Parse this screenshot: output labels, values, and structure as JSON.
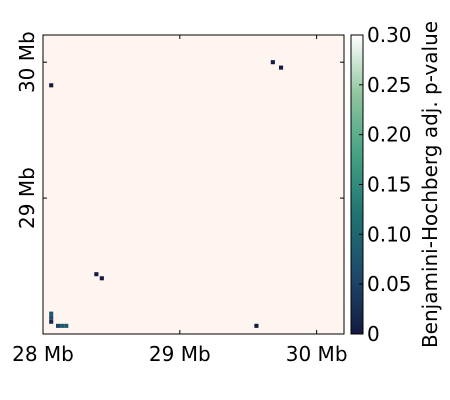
{
  "chart_data": {
    "type": "heatmap",
    "title": "",
    "x_range_mb": [
      28.0,
      30.2
    ],
    "y_range_mb": [
      28.0,
      30.2
    ],
    "x_ticks": [
      {
        "value": 28,
        "label": "28 Mb"
      },
      {
        "value": 29,
        "label": "29 Mb"
      },
      {
        "value": 30,
        "label": "30 Mb"
      }
    ],
    "y_ticks": [
      {
        "value": 29,
        "label": "29 Mb"
      },
      {
        "value": 30,
        "label": "30 Mb"
      }
    ],
    "background_color": "#fff5f0",
    "bin_size_mb": 0.03,
    "colorbar": {
      "label": "Benjamini-Hochberg adj. p-value",
      "min": 0,
      "max": 0.3,
      "ticks": [
        {
          "value": 0,
          "label": "0"
        },
        {
          "value": 0.05,
          "label": "0.05"
        },
        {
          "value": 0.1,
          "label": "0.10"
        },
        {
          "value": 0.15,
          "label": "0.15"
        },
        {
          "value": 0.2,
          "label": "0.20"
        },
        {
          "value": 0.25,
          "label": "0.25"
        },
        {
          "value": 0.3,
          "label": "0.30"
        }
      ],
      "colors": [
        "#131a3f",
        "#1e4a6b",
        "#1f7472",
        "#44a283",
        "#8ec59e",
        "#ffffff"
      ]
    },
    "cells": [
      {
        "x": 28.06,
        "y": 29.83,
        "p": 0.0
      },
      {
        "x": 29.68,
        "y": 30.0,
        "p": 0.0
      },
      {
        "x": 29.74,
        "y": 29.96,
        "p": 0.0
      },
      {
        "x": 28.39,
        "y": 28.44,
        "p": 0.0
      },
      {
        "x": 28.43,
        "y": 28.41,
        "p": 0.0
      },
      {
        "x": 28.06,
        "y": 28.15,
        "p": 0.08
      },
      {
        "x": 28.06,
        "y": 28.12,
        "p": 0.06
      },
      {
        "x": 28.06,
        "y": 28.09,
        "p": 0.02
      },
      {
        "x": 28.11,
        "y": 28.06,
        "p": 0.05
      },
      {
        "x": 28.14,
        "y": 28.06,
        "p": 0.08
      },
      {
        "x": 28.17,
        "y": 28.06,
        "p": 0.08
      },
      {
        "x": 29.56,
        "y": 28.06,
        "p": 0.0
      }
    ]
  }
}
